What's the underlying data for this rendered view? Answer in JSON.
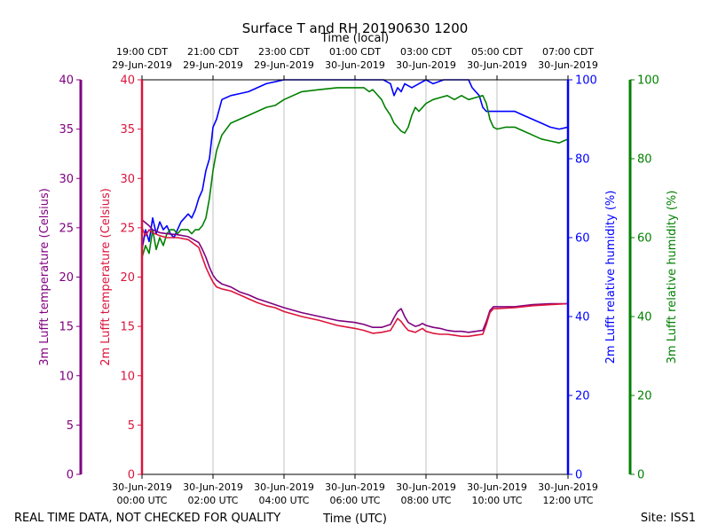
{
  "chart_data": {
    "type": "line",
    "title": "Surface T and RH 20190630 1200",
    "top_axis_label": "Time (local)",
    "xlabel": "Time (UTC)",
    "footer_left": "REAL TIME DATA, NOT CHECKED FOR QUALITY",
    "footer_right": "Site: ISS1",
    "xlim": [
      0,
      12
    ],
    "bottom_ticks": [
      {
        "x": 0,
        "line1": "30-Jun-2019",
        "line2": "00:00 UTC"
      },
      {
        "x": 2,
        "line1": "30-Jun-2019",
        "line2": "02:00 UTC"
      },
      {
        "x": 4,
        "line1": "30-Jun-2019",
        "line2": "04:00 UTC"
      },
      {
        "x": 6,
        "line1": "30-Jun-2019",
        "line2": "06:00 UTC"
      },
      {
        "x": 8,
        "line1": "30-Jun-2019",
        "line2": "08:00 UTC"
      },
      {
        "x": 10,
        "line1": "30-Jun-2019",
        "line2": "10:00 UTC"
      },
      {
        "x": 12,
        "line1": "30-Jun-2019",
        "line2": "12:00 UTC"
      }
    ],
    "top_ticks": [
      {
        "x": 0,
        "line1": "19:00 CDT",
        "line2": "29-Jun-2019"
      },
      {
        "x": 2,
        "line1": "21:00 CDT",
        "line2": "29-Jun-2019"
      },
      {
        "x": 4,
        "line1": "23:00 CDT",
        "line2": "29-Jun-2019"
      },
      {
        "x": 6,
        "line1": "01:00 CDT",
        "line2": "30-Jun-2019"
      },
      {
        "x": 8,
        "line1": "03:00 CDT",
        "line2": "30-Jun-2019"
      },
      {
        "x": 10,
        "line1": "05:00 CDT",
        "line2": "30-Jun-2019"
      },
      {
        "x": 12,
        "line1": "07:00 CDT",
        "line2": "30-Jun-2019"
      }
    ],
    "axes": {
      "temp3m": {
        "label": "3m Lufft temperature (Celsius)",
        "ylim": [
          0,
          40
        ],
        "ticks": [
          "0",
          "5",
          "10",
          "15",
          "20",
          "25",
          "30",
          "35",
          "40"
        ],
        "color": "#800080"
      },
      "temp2m": {
        "label": "2m Lufft temperature (Celsius)",
        "ylim": [
          0,
          40
        ],
        "ticks": [
          "0",
          "5",
          "10",
          "15",
          "20",
          "25",
          "30",
          "35",
          "40"
        ],
        "color": "#dc143c"
      },
      "rh2m": {
        "label": "2m Lufft relative humidity (%)",
        "ylim": [
          0,
          100
        ],
        "ticks": [
          "0",
          "20",
          "40",
          "60",
          "80",
          "100"
        ],
        "color": "#0000ff"
      },
      "rh3m": {
        "label": "3m Lufft relative humidity (%)",
        "ylim": [
          0,
          100
        ],
        "ticks": [
          "0",
          "20",
          "40",
          "60",
          "80",
          "100"
        ],
        "color": "#008000"
      }
    },
    "series": [
      {
        "name": "2m Lufft relative humidity",
        "axis": "rh2m",
        "color": "#0000ff",
        "x": [
          0,
          0.1,
          0.2,
          0.3,
          0.4,
          0.5,
          0.6,
          0.7,
          0.8,
          0.9,
          1.0,
          1.1,
          1.2,
          1.3,
          1.4,
          1.5,
          1.6,
          1.7,
          1.8,
          1.9,
          2.0,
          2.1,
          2.25,
          2.5,
          2.75,
          3.0,
          3.25,
          3.5,
          3.75,
          4.0,
          4.5,
          5.0,
          5.5,
          6.0,
          6.5,
          6.8,
          7.0,
          7.1,
          7.2,
          7.3,
          7.4,
          7.6,
          7.8,
          8.0,
          8.2,
          8.5,
          8.8,
          9.0,
          9.2,
          9.3,
          9.5,
          9.6,
          9.7,
          9.8,
          9.9,
          10.0,
          10.25,
          10.5,
          10.75,
          11.0,
          11.25,
          11.5,
          11.75,
          12.0
        ],
        "values": [
          57,
          62,
          59,
          65,
          61,
          64,
          62,
          63,
          61,
          60,
          62,
          64,
          65,
          66,
          65,
          67,
          70,
          72,
          77,
          80,
          88,
          90,
          95,
          96,
          96.5,
          97,
          98,
          99,
          99.5,
          100,
          100,
          100,
          100,
          100,
          100,
          100,
          99,
          96,
          98,
          97,
          99,
          98,
          99,
          100,
          99,
          100,
          100,
          100,
          100,
          98,
          96,
          93,
          92,
          92,
          92,
          92,
          92,
          92,
          91,
          90,
          89,
          88,
          87.5,
          88
        ]
      },
      {
        "name": "3m Lufft relative humidity",
        "axis": "rh3m",
        "color": "#008000",
        "x": [
          0,
          0.1,
          0.2,
          0.3,
          0.4,
          0.5,
          0.6,
          0.7,
          0.8,
          0.9,
          1.0,
          1.1,
          1.2,
          1.3,
          1.4,
          1.5,
          1.6,
          1.7,
          1.8,
          1.9,
          2.0,
          2.1,
          2.25,
          2.5,
          2.75,
          3.0,
          3.25,
          3.5,
          3.75,
          4.0,
          4.5,
          5.0,
          5.5,
          6.0,
          6.25,
          6.4,
          6.5,
          6.6,
          6.75,
          6.85,
          7.0,
          7.1,
          7.2,
          7.3,
          7.4,
          7.5,
          7.6,
          7.7,
          7.8,
          8.0,
          8.2,
          8.4,
          8.6,
          8.8,
          9.0,
          9.2,
          9.4,
          9.6,
          9.7,
          9.8,
          9.9,
          10.0,
          10.25,
          10.5,
          10.75,
          11.0,
          11.25,
          11.5,
          11.75,
          12.0
        ],
        "values": [
          55,
          58,
          56,
          62,
          57,
          60,
          58,
          61,
          62,
          62,
          61,
          62,
          62,
          62,
          61,
          62,
          62,
          63,
          65,
          70,
          77,
          82,
          86,
          89,
          90,
          91,
          92,
          93,
          93.5,
          95,
          97,
          97.5,
          98,
          98,
          98,
          97,
          97.5,
          96.5,
          95,
          93,
          91,
          89,
          88,
          87,
          86.5,
          88,
          91,
          93,
          92,
          94,
          95,
          95.5,
          96,
          95,
          96,
          95,
          95.5,
          96,
          94,
          90,
          88,
          87.5,
          88,
          88,
          87,
          86,
          85,
          84.5,
          84,
          85
        ]
      },
      {
        "name": "3m Lufft temperature",
        "axis": "temp3m",
        "color": "#800080",
        "x": [
          0,
          0.1,
          0.2,
          0.3,
          0.5,
          0.7,
          1.0,
          1.3,
          1.6,
          1.7,
          1.8,
          1.9,
          2.0,
          2.1,
          2.25,
          2.5,
          2.75,
          3.0,
          3.25,
          3.5,
          3.75,
          4.0,
          4.5,
          5.0,
          5.5,
          6.0,
          6.25,
          6.5,
          6.75,
          7.0,
          7.1,
          7.2,
          7.3,
          7.4,
          7.5,
          7.6,
          7.7,
          7.8,
          7.9,
          8.0,
          8.2,
          8.4,
          8.6,
          8.8,
          9.0,
          9.2,
          9.4,
          9.6,
          9.7,
          9.8,
          9.9,
          10.0,
          10.5,
          11.0,
          11.5,
          12.0
        ],
        "values": [
          25.8,
          25.5,
          25.2,
          24.8,
          24.5,
          24.4,
          24.3,
          24.1,
          23.5,
          22.8,
          22.0,
          21.0,
          20.2,
          19.7,
          19.3,
          19.0,
          18.5,
          18.2,
          17.8,
          17.5,
          17.2,
          16.9,
          16.4,
          16.0,
          15.6,
          15.4,
          15.2,
          14.9,
          14.9,
          15.2,
          15.9,
          16.5,
          16.8,
          16.0,
          15.4,
          15.2,
          15.0,
          15.1,
          15.3,
          15.1,
          14.9,
          14.8,
          14.6,
          14.5,
          14.5,
          14.4,
          14.5,
          14.6,
          15.5,
          16.6,
          17.0,
          17.0,
          17.0,
          17.2,
          17.3,
          17.3
        ]
      },
      {
        "name": "2m Lufft temperature",
        "axis": "temp2m",
        "color": "#dc143c",
        "x": [
          0,
          0.1,
          0.2,
          0.3,
          0.5,
          0.7,
          1.0,
          1.3,
          1.6,
          1.7,
          1.8,
          1.9,
          2.0,
          2.1,
          2.25,
          2.5,
          2.75,
          3.0,
          3.25,
          3.5,
          3.75,
          4.0,
          4.5,
          5.0,
          5.5,
          6.0,
          6.25,
          6.5,
          6.75,
          7.0,
          7.1,
          7.2,
          7.3,
          7.4,
          7.5,
          7.6,
          7.7,
          7.8,
          7.9,
          8.0,
          8.2,
          8.4,
          8.6,
          8.8,
          9.0,
          9.2,
          9.4,
          9.6,
          9.7,
          9.8,
          9.9,
          10.0,
          10.5,
          11.0,
          11.5,
          12.0
        ],
        "values": [
          25.0,
          24.2,
          24.8,
          24.5,
          24.2,
          24.0,
          24.0,
          23.8,
          23.0,
          22.0,
          21.0,
          20.2,
          19.5,
          19.0,
          18.8,
          18.6,
          18.2,
          17.8,
          17.4,
          17.1,
          16.9,
          16.5,
          16.0,
          15.6,
          15.1,
          14.8,
          14.6,
          14.3,
          14.4,
          14.6,
          15.2,
          15.8,
          15.5,
          15.0,
          14.6,
          14.5,
          14.4,
          14.6,
          14.8,
          14.5,
          14.3,
          14.2,
          14.2,
          14.1,
          14.0,
          14.0,
          14.1,
          14.2,
          15.2,
          16.4,
          16.8,
          16.8,
          16.9,
          17.1,
          17.2,
          17.3
        ]
      }
    ]
  }
}
